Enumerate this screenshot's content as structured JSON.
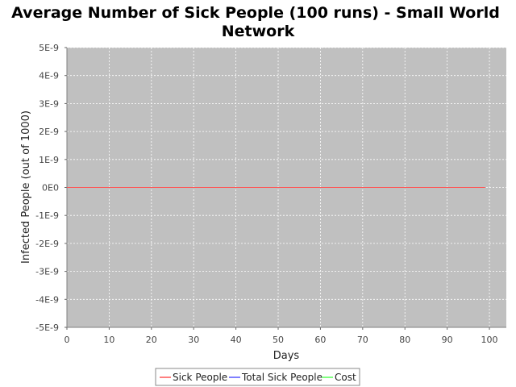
{
  "chart_data": {
    "type": "line",
    "title_line1": "Average Number of Sick People (100 runs) - Small World",
    "title_line2": "Network",
    "xlabel": "Days",
    "ylabel": "Infected People (out of 1000)",
    "xlim": [
      0,
      104
    ],
    "ylim": [
      -5e-09,
      5e-09
    ],
    "x_ticks": [
      0,
      10,
      20,
      30,
      40,
      50,
      60,
      70,
      80,
      90,
      100
    ],
    "y_ticks": [
      {
        "value": 5e-09,
        "label": "5E-9"
      },
      {
        "value": 4e-09,
        "label": "4E-9"
      },
      {
        "value": 3e-09,
        "label": "3E-9"
      },
      {
        "value": 2e-09,
        "label": "2E-9"
      },
      {
        "value": 1e-09,
        "label": "1E-9"
      },
      {
        "value": 0,
        "label": "0E0"
      },
      {
        "value": -1e-09,
        "label": "-1E-9"
      },
      {
        "value": -2e-09,
        "label": "-2E-9"
      },
      {
        "value": -3e-09,
        "label": "-3E-9"
      },
      {
        "value": -4e-09,
        "label": "-4E-9"
      },
      {
        "value": -5e-09,
        "label": "-5E-9"
      }
    ],
    "grid": true,
    "legend_position": "bottom",
    "series": [
      {
        "name": "Sick People",
        "color": "#ff5555",
        "x": [
          0,
          99
        ],
        "values": [
          0,
          0
        ]
      },
      {
        "name": "Total Sick People",
        "color": "#5555ff",
        "x": [],
        "values": []
      },
      {
        "name": "Cost",
        "color": "#55ff55",
        "x": [],
        "values": []
      }
    ],
    "plot_background": "#c0c0c0"
  }
}
